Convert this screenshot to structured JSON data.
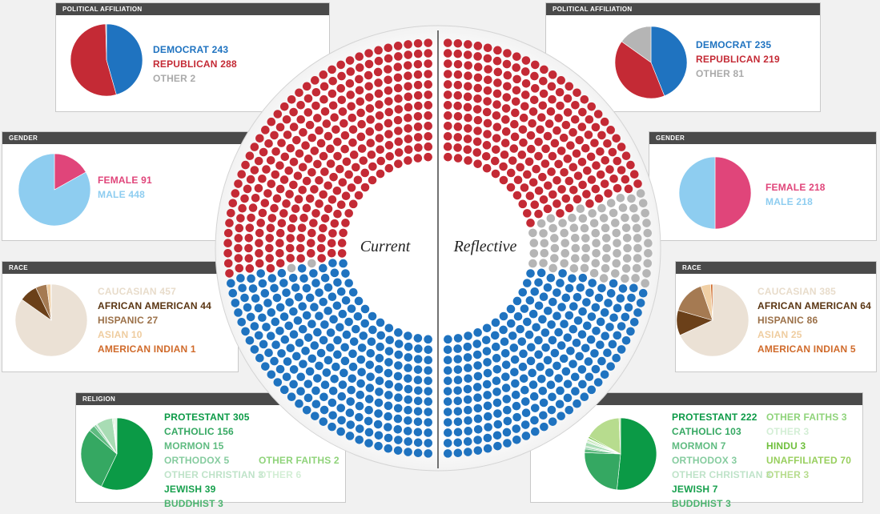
{
  "colors": {
    "democrat": "#1f73c0",
    "republican": "#c42a35",
    "other_party": "#b5b5b5",
    "female": "#e0457a",
    "male": "#8ecdf0"
  },
  "hemicycle": {
    "left_label": "Current",
    "right_label": "Reflective"
  },
  "panels": [
    {
      "id": "current-political",
      "header": "POLITICAL AFFILIATION",
      "items": [
        {
          "label": "DEMOCRAT 243",
          "value": 243,
          "color": "#1f73c0",
          "text_color": "#1f73c0"
        },
        {
          "label": "REPUBLICAN 288",
          "value": 288,
          "color": "#c42a35",
          "text_color": "#c42a35"
        },
        {
          "label": "OTHER 2",
          "value": 2,
          "color": "#b5b5b5",
          "text_color": "#aaaaaa"
        }
      ]
    },
    {
      "id": "reflective-political",
      "header": "POLITICAL AFFILIATION",
      "items": [
        {
          "label": "DEMOCRAT 235",
          "value": 235,
          "color": "#1f73c0",
          "text_color": "#1f73c0"
        },
        {
          "label": "REPUBLICAN 219",
          "value": 219,
          "color": "#c42a35",
          "text_color": "#c42a35"
        },
        {
          "label": "OTHER 81",
          "value": 81,
          "color": "#b5b5b5",
          "text_color": "#aaaaaa"
        }
      ]
    },
    {
      "id": "current-gender",
      "header": "GENDER",
      "items": [
        {
          "label": "FEMALE  91",
          "value": 91,
          "color": "#e0457a",
          "text_color": "#e0457a"
        },
        {
          "label": "MALE 448",
          "value": 448,
          "color": "#8ecdf0",
          "text_color": "#8ecdf0"
        }
      ]
    },
    {
      "id": "reflective-gender",
      "header": "GENDER",
      "items": [
        {
          "label": "FEMALE  218",
          "value": 218,
          "color": "#e0457a",
          "text_color": "#e0457a"
        },
        {
          "label": "MALE 218",
          "value": 218,
          "color": "#8ecdf0",
          "text_color": "#8ecdf0"
        }
      ]
    },
    {
      "id": "current-race",
      "header": "RACE",
      "items": [
        {
          "label": "CAUCASIAN 457",
          "value": 457,
          "color": "#ebe1d5",
          "text_color": "#e8dccb"
        },
        {
          "label": "AFRICAN AMERICAN 44",
          "value": 44,
          "color": "#6b4019",
          "text_color": "#5a3512"
        },
        {
          "label": "HISPANIC 27",
          "value": 27,
          "color": "#a57a52",
          "text_color": "#9b7048"
        },
        {
          "label": "ASIAN 10",
          "value": 10,
          "color": "#f0cfa4",
          "text_color": "#efcda0"
        },
        {
          "label": "AMERICAN INDIAN 1",
          "value": 1,
          "color": "#d06a2a",
          "text_color": "#d06a2a"
        }
      ]
    },
    {
      "id": "reflective-race",
      "header": "RACE",
      "items": [
        {
          "label": "CAUCASIAN 385",
          "value": 385,
          "color": "#ebe1d5",
          "text_color": "#e8dccb"
        },
        {
          "label": "AFRICAN AMERICAN 64",
          "value": 64,
          "color": "#6b4019",
          "text_color": "#5a3512"
        },
        {
          "label": "HISPANIC 86",
          "value": 86,
          "color": "#a57a52",
          "text_color": "#9b7048"
        },
        {
          "label": "ASIAN 25",
          "value": 25,
          "color": "#f0cfa4",
          "text_color": "#efcda0"
        },
        {
          "label": "AMERICAN INDIAN 5",
          "value": 5,
          "color": "#d06a2a",
          "text_color": "#d06a2a"
        }
      ]
    },
    {
      "id": "current-religion",
      "header": "RELIGION",
      "items": [
        {
          "label": "PROTESTANT 305",
          "value": 305,
          "color": "#0b9a46",
          "text_color": "#0b9a46"
        },
        {
          "label": "CATHOLIC 156",
          "value": 156,
          "color": "#35a862",
          "text_color": "#35a862"
        },
        {
          "label": "MORMON 15",
          "value": 15,
          "color": "#5fbb80",
          "text_color": "#5fbb80"
        },
        {
          "label": "ORTHODOX 5",
          "value": 5,
          "color": "#86cc9f",
          "text_color": "#86cc9f"
        },
        {
          "label": "OTHER CHRISTIAN 3",
          "value": 3,
          "color": "#bfe3c9",
          "text_color": "#bfe3c9"
        },
        {
          "label": "JEWISH 39",
          "value": 39,
          "color": "#a8dcb4",
          "text_color": "#17a04d"
        },
        {
          "label": "BUDDHIST 3",
          "value": 3,
          "color": "#d4edd9",
          "text_color": "#4cb36f"
        },
        {
          "label": "OTHER FAITHS 2",
          "value": 2,
          "color": "#b2e0a0",
          "text_color": "#8fd37a"
        },
        {
          "label": "OTHER 6",
          "value": 6,
          "color": "#e2f3e3",
          "text_color": "#d3eed5"
        }
      ]
    },
    {
      "id": "reflective-religion",
      "header": "RELIGION",
      "items": [
        {
          "label": "PROTESTANT 222",
          "value": 222,
          "color": "#0b9a46",
          "text_color": "#0b9a46"
        },
        {
          "label": "CATHOLIC 103",
          "value": 103,
          "color": "#35a862",
          "text_color": "#35a862"
        },
        {
          "label": "MORMON 7",
          "value": 7,
          "color": "#5fbb80",
          "text_color": "#5fbb80"
        },
        {
          "label": "ORTHODOX 3",
          "value": 3,
          "color": "#86cc9f",
          "text_color": "#86cc9f"
        },
        {
          "label": "OTHER CHRISTIAN 3",
          "value": 3,
          "color": "#bfe3c9",
          "text_color": "#bfe3c9"
        },
        {
          "label": "JEWISH 7",
          "value": 7,
          "color": "#a8dcb4",
          "text_color": "#17a04d"
        },
        {
          "label": "BUDDHIST 3",
          "value": 3,
          "color": "#d4edd9",
          "text_color": "#4cb36f"
        },
        {
          "label": "OTHER FAITHS 3",
          "value": 3,
          "color": "#b2e0a0",
          "text_color": "#8fd37a"
        },
        {
          "label": "OTHER 3",
          "value": 3,
          "color": "#e2f3e3",
          "text_color": "#d3eed5"
        },
        {
          "label": "HINDU 3",
          "value": 3,
          "color": "#6fbf3c",
          "text_color": "#6fbf3c"
        },
        {
          "label": "UNAFFILIATED 70",
          "value": 70,
          "color": "#b7dc8e",
          "text_color": "#98cf5e"
        },
        {
          "label": "OTHER 3",
          "value": 3,
          "color": "#cde9b1",
          "text_color": "#b7dc8e"
        }
      ]
    }
  ],
  "chart_data": [
    {
      "type": "pie",
      "title": "POLITICAL AFFILIATION",
      "categories": [
        "DEMOCRAT",
        "REPUBLICAN",
        "OTHER"
      ],
      "values": [
        243,
        288,
        2
      ]
    },
    {
      "type": "pie",
      "title": "POLITICAL AFFILIATION",
      "categories": [
        "DEMOCRAT",
        "REPUBLICAN",
        "OTHER"
      ],
      "values": [
        235,
        219,
        81
      ]
    },
    {
      "type": "pie",
      "title": "GENDER",
      "categories": [
        "FEMALE",
        "MALE"
      ],
      "values": [
        91,
        448
      ]
    },
    {
      "type": "pie",
      "title": "GENDER",
      "categories": [
        "FEMALE",
        "MALE"
      ],
      "values": [
        218,
        218
      ]
    },
    {
      "type": "pie",
      "title": "RACE",
      "categories": [
        "CAUCASIAN",
        "AFRICAN AMERICAN",
        "HISPANIC",
        "ASIAN",
        "AMERICAN INDIAN"
      ],
      "values": [
        457,
        44,
        27,
        10,
        1
      ]
    },
    {
      "type": "pie",
      "title": "RACE",
      "categories": [
        "CAUCASIAN",
        "AFRICAN AMERICAN",
        "HISPANIC",
        "ASIAN",
        "AMERICAN INDIAN"
      ],
      "values": [
        385,
        64,
        86,
        25,
        5
      ]
    },
    {
      "type": "pie",
      "title": "RELIGION",
      "categories": [
        "PROTESTANT",
        "CATHOLIC",
        "MORMON",
        "ORTHODOX",
        "OTHER CHRISTIAN",
        "JEWISH",
        "BUDDHIST",
        "OTHER FAITHS",
        "OTHER"
      ],
      "values": [
        305,
        156,
        15,
        5,
        3,
        39,
        3,
        2,
        6
      ]
    },
    {
      "type": "pie",
      "title": "RELIGION",
      "categories": [
        "PROTESTANT",
        "CATHOLIC",
        "MORMON",
        "ORTHODOX",
        "OTHER CHRISTIAN",
        "JEWISH",
        "BUDDHIST",
        "OTHER FAITHS",
        "OTHER",
        "HINDU",
        "UNAFFILIATED",
        "OTHER"
      ],
      "values": [
        222,
        103,
        7,
        3,
        3,
        7,
        3,
        3,
        3,
        3,
        70,
        3
      ]
    },
    {
      "type": "scatter",
      "title": "Current",
      "series": [
        {
          "name": "DEMOCRAT",
          "values": [
            243
          ]
        },
        {
          "name": "REPUBLICAN",
          "values": [
            288
          ]
        },
        {
          "name": "OTHER",
          "values": [
            2
          ]
        }
      ]
    },
    {
      "type": "scatter",
      "title": "Reflective",
      "series": [
        {
          "name": "DEMOCRAT",
          "values": [
            235
          ]
        },
        {
          "name": "REPUBLICAN",
          "values": [
            219
          ]
        },
        {
          "name": "OTHER",
          "values": [
            81
          ]
        }
      ]
    }
  ]
}
